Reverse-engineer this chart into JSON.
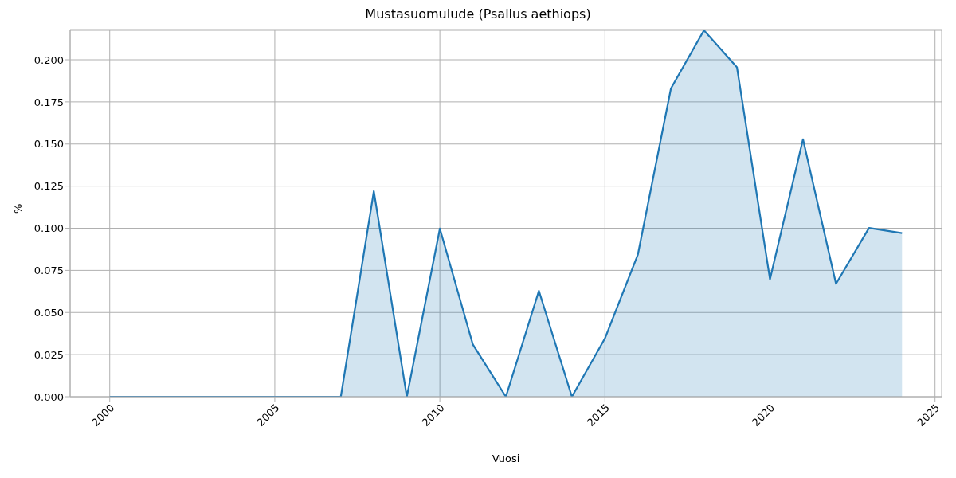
{
  "chart_data": {
    "type": "area",
    "title": "Mustasuomulude (Psallus aethiops)",
    "xlabel": "Vuosi",
    "ylabel": "%",
    "x": [
      2000,
      2001,
      2002,
      2003,
      2004,
      2005,
      2006,
      2007,
      2008,
      2009,
      2010,
      2011,
      2012,
      2013,
      2014,
      2015,
      2016,
      2017,
      2018,
      2019,
      2020,
      2021,
      2022,
      2023,
      2024
    ],
    "series": [
      {
        "color": "#1f77b4",
        "values": [
          0,
          0,
          0,
          0,
          0,
          0,
          0,
          0,
          0.122,
          0,
          0.0998,
          0.031,
          0,
          0.0629,
          0,
          0.0346,
          0.0845,
          0.183,
          0.2175,
          0.1955,
          0.0697,
          0.1528,
          0.067,
          0.1002,
          0.0971
        ]
      }
    ],
    "xlim": [
      1998.8,
      2025.2
    ],
    "xticks": [
      2000,
      2005,
      2010,
      2015,
      2020,
      2025
    ],
    "ylim": [
      0,
      0.2175
    ],
    "yticks": [
      {
        "value": 0,
        "label": "0.000"
      },
      0.025,
      {
        "value": 0.05,
        "label": "0.050"
      },
      0.075,
      {
        "value": 0.1,
        "label": "0.100"
      },
      0.125,
      {
        "value": 0.15,
        "label": "0.150"
      },
      0.175,
      {
        "value": 0.2,
        "label": "0.200"
      }
    ],
    "grid": true,
    "legend": false,
    "line_style": "solid",
    "marker": "none"
  }
}
